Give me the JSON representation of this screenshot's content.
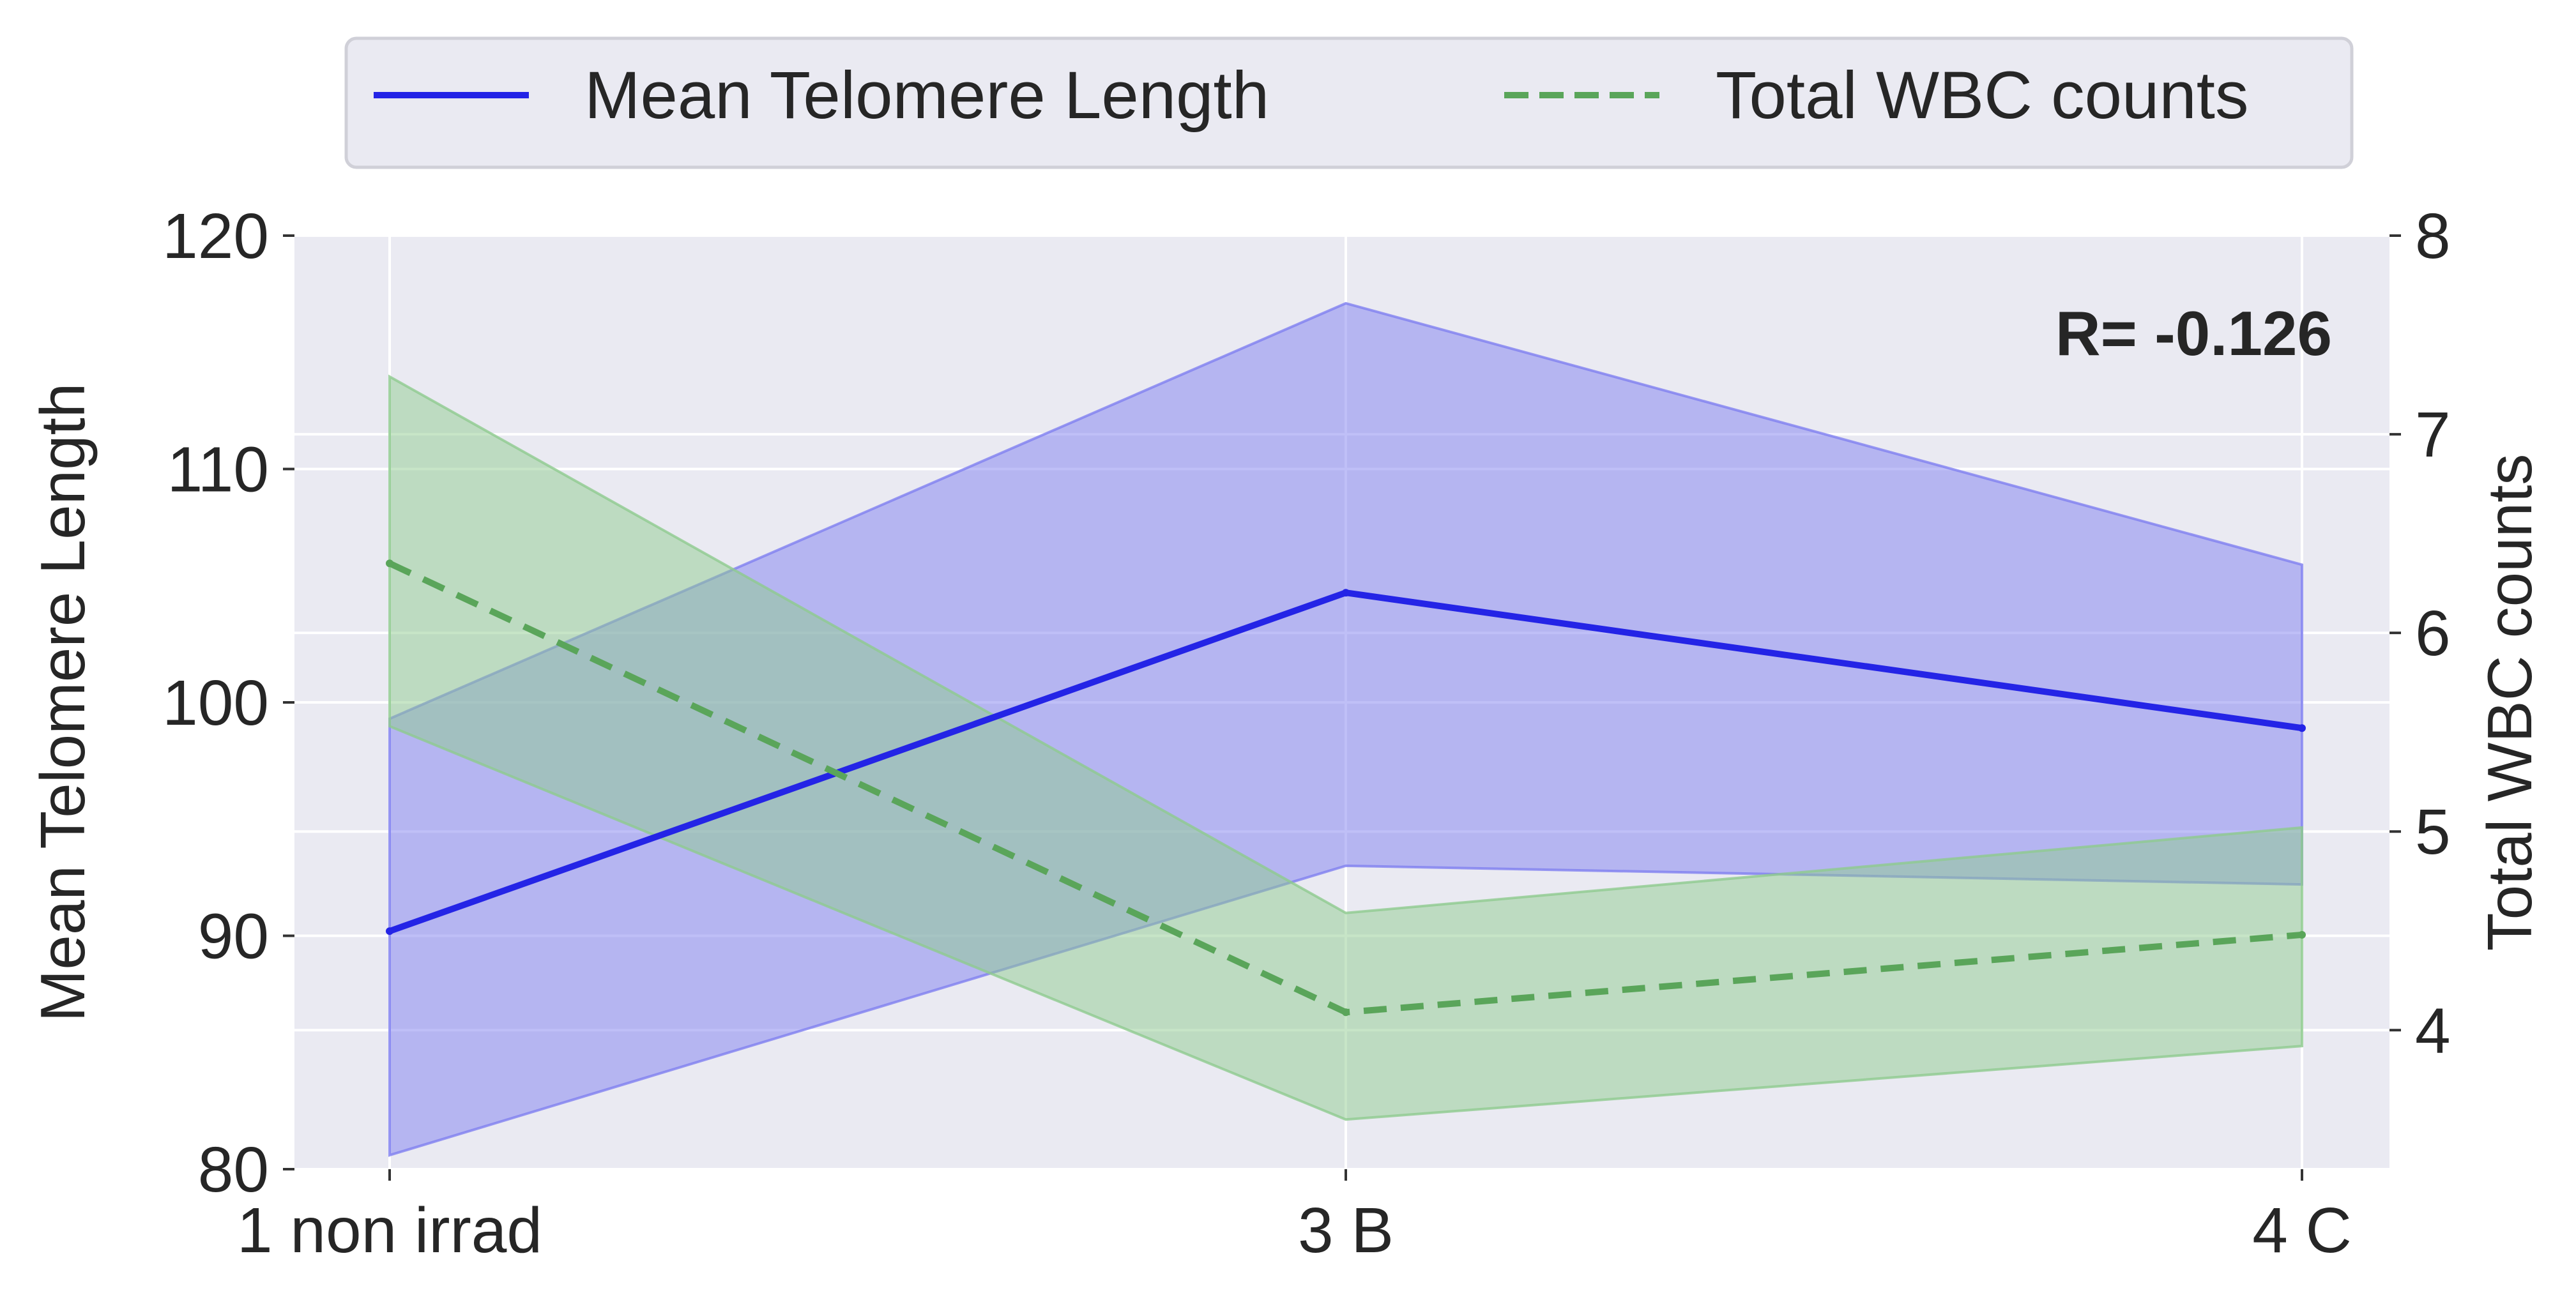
{
  "colors": {
    "background": "#ffffff",
    "plot_background": "#eaeaf2",
    "grid": "#ffffff",
    "telomere_line": "#2424e6",
    "telomere_band": "#8080f0",
    "wbc_line": "#5aa55a",
    "wbc_band": "#8fcb8f",
    "text": "#262626"
  },
  "chart_data": {
    "type": "line",
    "categories": [
      "1 non irrad",
      "3 B",
      "4 C"
    ],
    "annotation": "R= -0.126",
    "legend": {
      "placement": "top-center",
      "entries": [
        "Mean Telomere Length",
        "Total WBC counts"
      ]
    },
    "grid": true,
    "left_axis": {
      "label": "Mean Telomere Length",
      "ylim": [
        80,
        120
      ],
      "ticks": [
        "80",
        "90",
        "100",
        "110",
        "120"
      ]
    },
    "right_axis": {
      "label": "Total WBC counts",
      "ylim": [
        3.3,
        8
      ],
      "ticks": [
        "4",
        "5",
        "6",
        "7",
        "8"
      ]
    },
    "series": [
      {
        "name": "Mean Telomere Length",
        "axis": "left",
        "style": "solid",
        "values": [
          90.2,
          104.7,
          98.9
        ],
        "band_low": [
          80.6,
          93.0,
          92.2
        ],
        "band_high": [
          99.3,
          117.1,
          105.9
        ]
      },
      {
        "name": "Total WBC counts",
        "axis": "right",
        "style": "dashed",
        "values": [
          6.35,
          4.09,
          4.48
        ],
        "band_low": [
          5.53,
          3.55,
          3.92
        ],
        "band_high": [
          7.29,
          4.59,
          5.02
        ]
      }
    ]
  }
}
